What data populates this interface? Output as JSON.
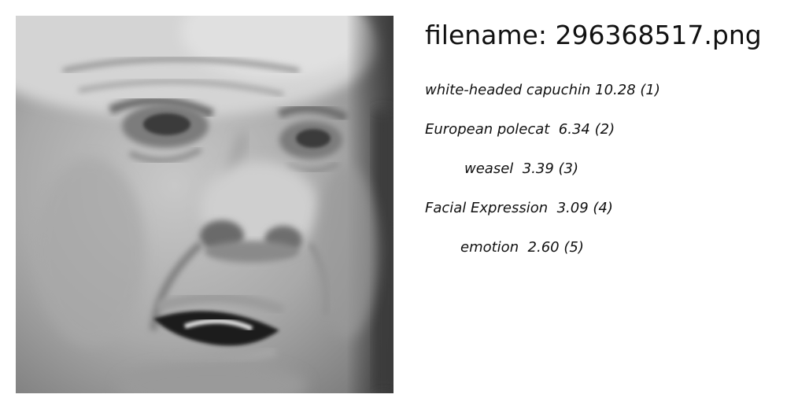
{
  "filename_title": "filename: 296368517.png",
  "image": {
    "subject": "grayscale close-up of an older man's face, mouth open",
    "icon": "face-photo"
  },
  "labels": [
    {
      "name": "white-headed capuchin",
      "score": "10.28",
      "rank": "(1)",
      "text": "white-headed capuchin 10.28 (1)"
    },
    {
      "name": "European polecat",
      "score": "6.34",
      "rank": "(2)",
      "text": "European polecat  6.34 (2)"
    },
    {
      "name": "weasel",
      "score": "3.39",
      "rank": "(3)",
      "text": "weasel  3.39 (3)"
    },
    {
      "name": "Facial Expression",
      "score": "3.09",
      "rank": "(4)",
      "text": "Facial Expression  3.09 (4)"
    },
    {
      "name": "emotion",
      "score": "2.60",
      "rank": "(5)",
      "text": "emotion  2.60 (5)"
    }
  ]
}
